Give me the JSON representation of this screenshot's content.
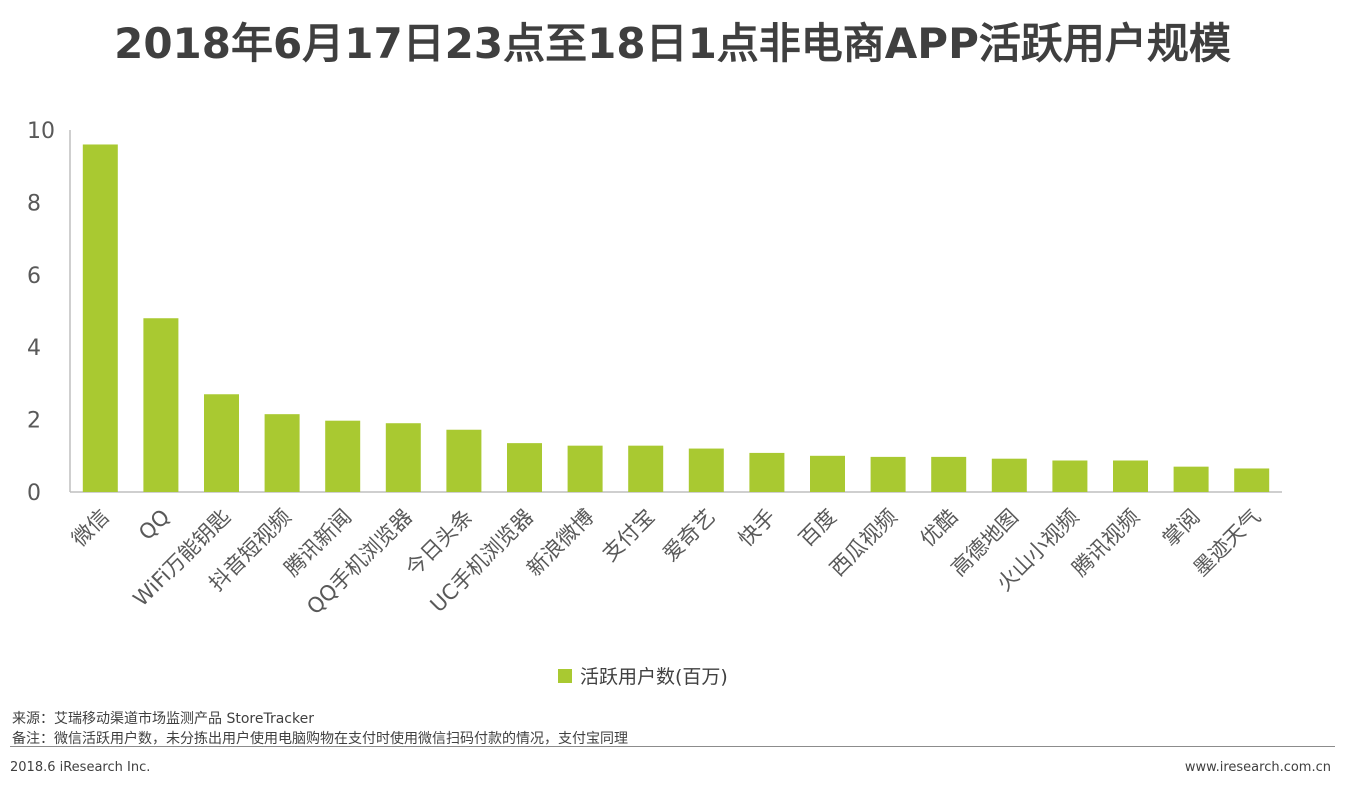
{
  "colors": {
    "bar": "#a9c931",
    "axis": "#bfbfbf",
    "text": "#595959"
  },
  "title": "2018年6月17日23点至18日1点非电商APP活跃用户规模",
  "chart_data": {
    "type": "bar",
    "title": "2018年6月17日23点至18日1点非电商APP活跃用户规模",
    "categories": [
      "微信",
      "QQ",
      "WiFi万能钥匙",
      "抖音短视频",
      "腾讯新闻",
      "QQ手机浏览器",
      "今日头条",
      "UC手机浏览器",
      "新浪微博",
      "支付宝",
      "爱奇艺",
      "快手",
      "百度",
      "西瓜视频",
      "优酷",
      "高德地图",
      "火山小视频",
      "腾讯视频",
      "掌阅",
      "墨迹天气"
    ],
    "series": [
      {
        "name": "活跃用户数(百万)",
        "values": [
          9.6,
          4.8,
          2.7,
          2.15,
          1.97,
          1.9,
          1.72,
          1.35,
          1.28,
          1.28,
          1.2,
          1.08,
          1.0,
          0.97,
          0.97,
          0.92,
          0.87,
          0.87,
          0.7,
          0.65
        ]
      }
    ],
    "ylim": [
      0,
      10
    ],
    "yticks": [
      0,
      2,
      4,
      6,
      8,
      10
    ],
    "xlabel": "",
    "ylabel": "",
    "legend": "bottom-center"
  },
  "legend": {
    "label": "活跃用户数(百万)"
  },
  "footer": {
    "source": "来源：艾瑞移动渠道市场监测产品 StoreTracker",
    "note": "备注：微信活跃用户数，未分拣出用户使用电脑购物在支付时使用微信扫码付款的情况，支付宝同理",
    "copyright": "2018.6 iResearch Inc.",
    "website": "www.iresearch.com.cn"
  }
}
